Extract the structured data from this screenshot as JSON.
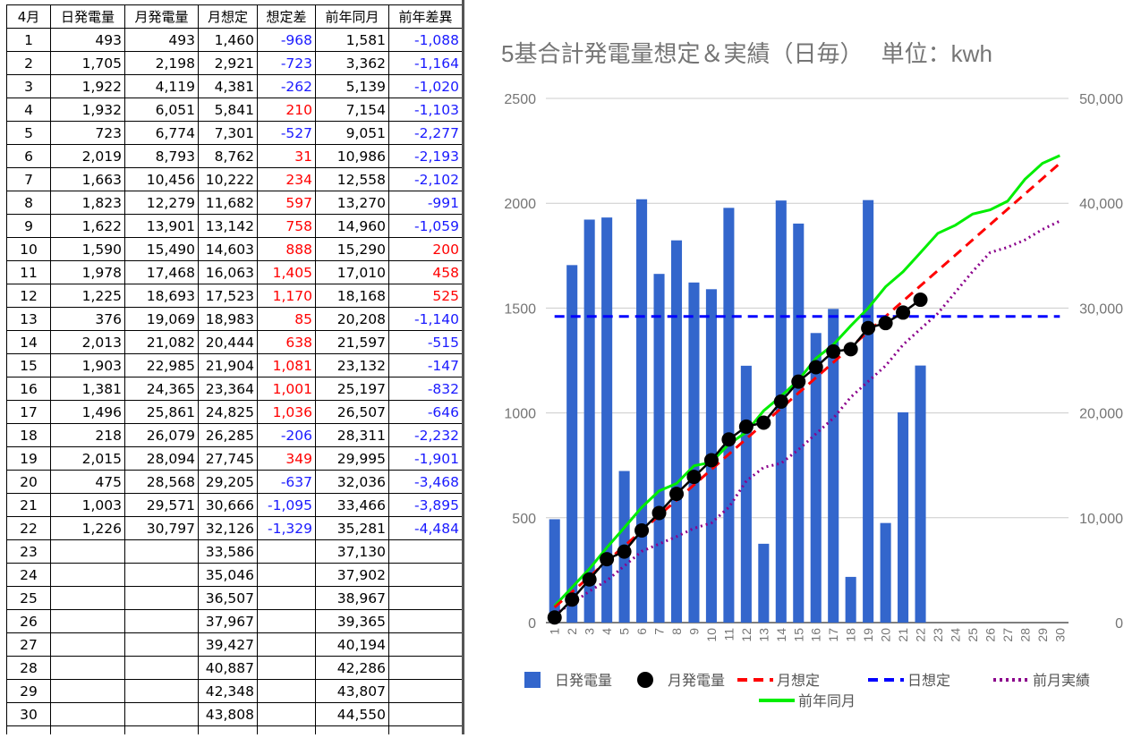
{
  "table": {
    "headers": [
      "4月",
      "日発電量",
      "月発電量",
      "月想定",
      "想定差",
      "前年同月",
      "前年差異"
    ],
    "rows": [
      [
        "1",
        "493",
        "493",
        "1,460",
        "-968",
        "1,581",
        "-1,088"
      ],
      [
        "2",
        "1,705",
        "2,198",
        "2,921",
        "-723",
        "3,362",
        "-1,164"
      ],
      [
        "3",
        "1,922",
        "4,119",
        "4,381",
        "-262",
        "5,139",
        "-1,020"
      ],
      [
        "4",
        "1,932",
        "6,051",
        "5,841",
        "210",
        "7,154",
        "-1,103"
      ],
      [
        "5",
        "723",
        "6,774",
        "7,301",
        "-527",
        "9,051",
        "-2,277"
      ],
      [
        "6",
        "2,019",
        "8,793",
        "8,762",
        "31",
        "10,986",
        "-2,193"
      ],
      [
        "7",
        "1,663",
        "10,456",
        "10,222",
        "234",
        "12,558",
        "-2,102"
      ],
      [
        "8",
        "1,823",
        "12,279",
        "11,682",
        "597",
        "13,270",
        "-991"
      ],
      [
        "9",
        "1,622",
        "13,901",
        "13,142",
        "758",
        "14,960",
        "-1,059"
      ],
      [
        "10",
        "1,590",
        "15,490",
        "14,603",
        "888",
        "15,290",
        "200"
      ],
      [
        "11",
        "1,978",
        "17,468",
        "16,063",
        "1,405",
        "17,010",
        "458"
      ],
      [
        "12",
        "1,225",
        "18,693",
        "17,523",
        "1,170",
        "18,168",
        "525"
      ],
      [
        "13",
        "376",
        "19,069",
        "18,983",
        "85",
        "20,208",
        "-1,140"
      ],
      [
        "14",
        "2,013",
        "21,082",
        "20,444",
        "638",
        "21,597",
        "-515"
      ],
      [
        "15",
        "1,903",
        "22,985",
        "21,904",
        "1,081",
        "23,132",
        "-147"
      ],
      [
        "16",
        "1,381",
        "24,365",
        "23,364",
        "1,001",
        "25,197",
        "-832"
      ],
      [
        "17",
        "1,496",
        "25,861",
        "24,825",
        "1,036",
        "26,507",
        "-646"
      ],
      [
        "18",
        "218",
        "26,079",
        "26,285",
        "-206",
        "28,311",
        "-2,232"
      ],
      [
        "19",
        "2,015",
        "28,094",
        "27,745",
        "349",
        "29,995",
        "-1,901"
      ],
      [
        "20",
        "475",
        "28,568",
        "29,205",
        "-637",
        "32,036",
        "-3,468"
      ],
      [
        "21",
        "1,003",
        "29,571",
        "30,666",
        "-1,095",
        "33,466",
        "-3,895"
      ],
      [
        "22",
        "1,226",
        "30,797",
        "32,126",
        "-1,329",
        "35,281",
        "-4,484"
      ],
      [
        "23",
        "",
        "",
        "33,586",
        "",
        "37,130",
        ""
      ],
      [
        "24",
        "",
        "",
        "35,046",
        "",
        "37,902",
        ""
      ],
      [
        "25",
        "",
        "",
        "36,507",
        "",
        "38,967",
        ""
      ],
      [
        "26",
        "",
        "",
        "37,967",
        "",
        "39,365",
        ""
      ],
      [
        "27",
        "",
        "",
        "39,427",
        "",
        "40,194",
        ""
      ],
      [
        "28",
        "",
        "",
        "40,887",
        "",
        "42,286",
        ""
      ],
      [
        "29",
        "",
        "",
        "42,348",
        "",
        "43,807",
        ""
      ],
      [
        "30",
        "",
        "",
        "43,808",
        "",
        "44,550",
        ""
      ],
      [
        "",
        "",
        "",
        "",
        "",
        "",
        ""
      ]
    ]
  },
  "chart_data": {
    "type": "bar",
    "title": "5基合計発電量想定＆実績（日毎）　 単位：kwh",
    "categories": [
      "1",
      "2",
      "3",
      "4",
      "5",
      "6",
      "7",
      "8",
      "9",
      "10",
      "11",
      "12",
      "13",
      "14",
      "15",
      "16",
      "17",
      "18",
      "19",
      "20",
      "21",
      "22",
      "23",
      "24",
      "25",
      "26",
      "27",
      "28",
      "29",
      "30"
    ],
    "left_axis": {
      "range": [
        0,
        2500
      ],
      "ticks": [
        "0",
        "500",
        "1000",
        "1500",
        "2000",
        "2500"
      ]
    },
    "right_axis": {
      "range": [
        0,
        50000
      ],
      "ticks": [
        "0",
        "10,000",
        "20,000",
        "30,000",
        "40,000",
        "50,000"
      ]
    },
    "grid": true,
    "legend_position": "bottom",
    "series": [
      {
        "name": "日発電量",
        "type": "bar",
        "axis": "left",
        "color": "#3366cc",
        "values": [
          493,
          1705,
          1922,
          1932,
          723,
          2019,
          1663,
          1823,
          1622,
          1590,
          1978,
          1225,
          376,
          2013,
          1903,
          1381,
          1496,
          218,
          2015,
          475,
          1003,
          1226,
          null,
          null,
          null,
          null,
          null,
          null,
          null,
          null
        ]
      },
      {
        "name": "月発電量",
        "type": "line-markers",
        "axis": "right",
        "color": "#000000",
        "values": [
          493,
          2198,
          4119,
          6051,
          6774,
          8793,
          10456,
          12279,
          13901,
          15490,
          17468,
          18693,
          19069,
          21082,
          22985,
          24365,
          25861,
          26079,
          28094,
          28568,
          29571,
          30797,
          null,
          null,
          null,
          null,
          null,
          null,
          null,
          null
        ]
      },
      {
        "name": "月想定",
        "type": "dashed-line",
        "axis": "right",
        "color": "#ff0000",
        "values": [
          1460,
          2921,
          4381,
          5841,
          7301,
          8762,
          10222,
          11682,
          13142,
          14603,
          16063,
          17523,
          18983,
          20444,
          21904,
          23364,
          24825,
          26285,
          27745,
          29205,
          30666,
          32126,
          33586,
          35046,
          36507,
          37967,
          39427,
          40887,
          42348,
          43808
        ]
      },
      {
        "name": "日想定",
        "type": "dashed-line",
        "axis": "left",
        "color": "#0000ff",
        "values": [
          1460,
          1460,
          1460,
          1460,
          1460,
          1460,
          1460,
          1460,
          1460,
          1460,
          1460,
          1460,
          1460,
          1460,
          1460,
          1460,
          1460,
          1460,
          1460,
          1460,
          1460,
          1460,
          1460,
          1460,
          1460,
          1460,
          1460,
          1460,
          1460,
          1460
        ]
      },
      {
        "name": "前月実績",
        "type": "dotted-line",
        "axis": "right",
        "color": "#8b008b",
        "values": [
          800,
          1800,
          3000,
          4000,
          5400,
          6800,
          7500,
          8200,
          9000,
          9500,
          11000,
          13500,
          14800,
          15200,
          16500,
          18000,
          19500,
          21500,
          23000,
          24500,
          26500,
          28000,
          29500,
          31500,
          33500,
          35300,
          35800,
          36500,
          37500,
          38300
        ]
      },
      {
        "name": "前年同月",
        "type": "line",
        "axis": "right",
        "color": "#00ee00",
        "values": [
          1581,
          3362,
          5139,
          7154,
          9051,
          10986,
          12558,
          13270,
          14960,
          15290,
          17010,
          18168,
          20208,
          21597,
          23132,
          25197,
          26507,
          28311,
          29995,
          32036,
          33466,
          35281,
          37130,
          37902,
          38967,
          39365,
          40194,
          42286,
          43807,
          44550
        ]
      }
    ]
  }
}
